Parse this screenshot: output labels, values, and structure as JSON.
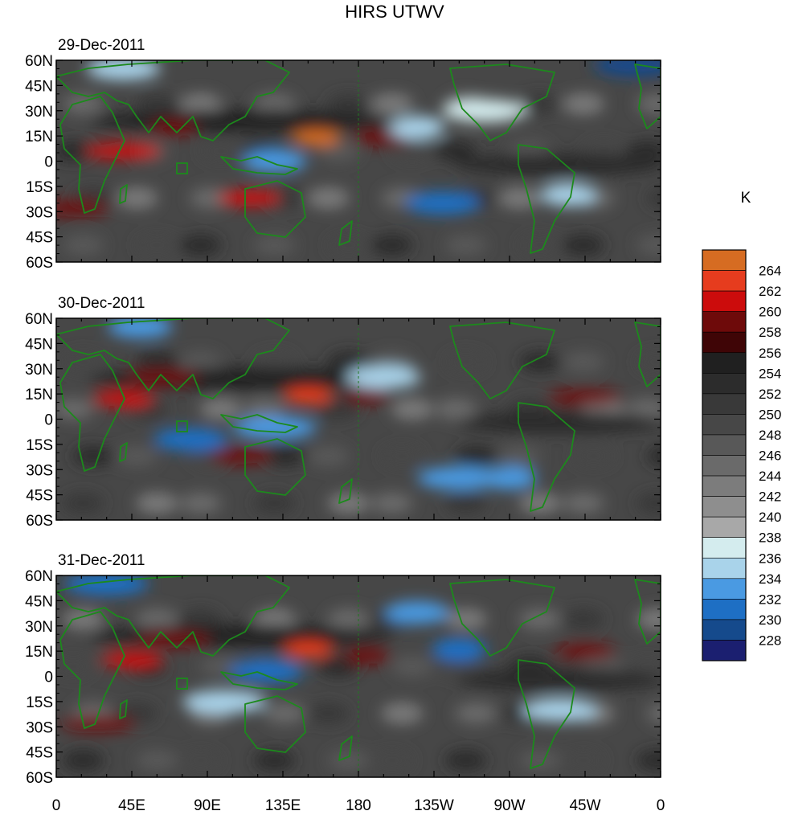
{
  "chart_data": {
    "type": "heatmap",
    "title": "HIRS UTWV",
    "units": "K",
    "ylabels": [
      "60N",
      "45N",
      "30N",
      "15N",
      "0",
      "15S",
      "30S",
      "45S",
      "60S"
    ],
    "yvalues": [
      60,
      45,
      30,
      15,
      0,
      -15,
      -30,
      -45,
      -60
    ],
    "xlabels": [
      "0",
      "45E",
      "90E",
      "135E",
      "180",
      "135W",
      "90W",
      "45W",
      "0"
    ],
    "xvalues": [
      0,
      45,
      90,
      135,
      180,
      225,
      270,
      315,
      360
    ],
    "xlim": [
      0,
      360
    ],
    "ylim": [
      -60,
      60
    ],
    "colorbar": {
      "levels": [
        228,
        230,
        232,
        234,
        236,
        238,
        240,
        242,
        244,
        246,
        248,
        250,
        252,
        254,
        256,
        258,
        260,
        262,
        264
      ],
      "colors": [
        "#1b1f70",
        "#154a8c",
        "#1e6fc4",
        "#4a9ae2",
        "#a9d3ea",
        "#d4ecee",
        "#a8a8a8",
        "#8e8e8e",
        "#7c7c7c",
        "#6a6a6a",
        "#585858",
        "#474747",
        "#393939",
        "#2c2c2c",
        "#202020",
        "#3f0506",
        "#6e0a0a",
        "#cc0c0c",
        "#e63c1e",
        "#d66c22"
      ]
    },
    "panels": [
      {
        "date": "29-Dec-2011",
        "features": [
          {
            "lon": 155,
            "lat": 14,
            "value": 264
          },
          {
            "lon": 115,
            "lat": -22,
            "value": 260
          },
          {
            "lon": 40,
            "lat": 6,
            "value": 260
          },
          {
            "lon": 70,
            "lat": 20,
            "value": 258
          },
          {
            "lon": 195,
            "lat": 14,
            "value": 258
          },
          {
            "lon": 10,
            "lat": -28,
            "value": 258
          },
          {
            "lon": 230,
            "lat": -25,
            "value": 230
          },
          {
            "lon": 345,
            "lat": 57,
            "value": 228
          },
          {
            "lon": 215,
            "lat": 20,
            "value": 234
          },
          {
            "lon": 130,
            "lat": 0,
            "value": 232
          },
          {
            "lon": 40,
            "lat": 55,
            "value": 234
          },
          {
            "lon": 255,
            "lat": 30,
            "value": 236
          },
          {
            "lon": 305,
            "lat": -20,
            "value": 234
          }
        ]
      },
      {
        "date": "30-Dec-2011",
        "features": [
          {
            "lon": 150,
            "lat": 14,
            "value": 262
          },
          {
            "lon": 40,
            "lat": 12,
            "value": 260
          },
          {
            "lon": 63,
            "lat": 25,
            "value": 258
          },
          {
            "lon": 185,
            "lat": 14,
            "value": 258
          },
          {
            "lon": 110,
            "lat": -22,
            "value": 258
          },
          {
            "lon": 315,
            "lat": 13,
            "value": 258
          },
          {
            "lon": 80,
            "lat": -12,
            "value": 230
          },
          {
            "lon": 240,
            "lat": -35,
            "value": 232
          },
          {
            "lon": 270,
            "lat": -35,
            "value": 232
          },
          {
            "lon": 50,
            "lat": 55,
            "value": 232
          },
          {
            "lon": 195,
            "lat": 25,
            "value": 234
          },
          {
            "lon": 130,
            "lat": -5,
            "value": 232
          }
        ]
      },
      {
        "date": "31-Dec-2011",
        "features": [
          {
            "lon": 150,
            "lat": 16,
            "value": 262
          },
          {
            "lon": 45,
            "lat": 10,
            "value": 260
          },
          {
            "lon": 70,
            "lat": 22,
            "value": 258
          },
          {
            "lon": 185,
            "lat": 12,
            "value": 258
          },
          {
            "lon": 315,
            "lat": 15,
            "value": 258
          },
          {
            "lon": 25,
            "lat": -28,
            "value": 258
          },
          {
            "lon": 125,
            "lat": 3,
            "value": 230
          },
          {
            "lon": 30,
            "lat": 55,
            "value": 230
          },
          {
            "lon": 240,
            "lat": 16,
            "value": 230
          },
          {
            "lon": 215,
            "lat": 38,
            "value": 232
          },
          {
            "lon": 300,
            "lat": -20,
            "value": 234
          },
          {
            "lon": 100,
            "lat": -15,
            "value": 234
          }
        ]
      }
    ]
  }
}
